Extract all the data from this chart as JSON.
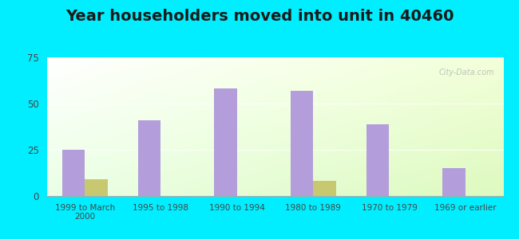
{
  "title": "Year householders moved into unit in 40460",
  "categories": [
    "1999 to March\n2000",
    "1995 to 1998",
    "1990 to 1994",
    "1980 to 1989",
    "1970 to 1979",
    "1969 or earlier"
  ],
  "white_non_hispanic": [
    25,
    41,
    58,
    57,
    39,
    15
  ],
  "two_or_more_races": [
    9,
    0,
    0,
    8,
    0,
    0
  ],
  "bar_color_white": "#b39ddb",
  "bar_color_two": "#c8c870",
  "ylim": [
    0,
    75
  ],
  "yticks": [
    0,
    25,
    50,
    75
  ],
  "background_outer": "#00eeff",
  "grid_color": "#ffffff",
  "bar_width": 0.3,
  "title_fontsize": 14,
  "watermark": "City-Data.com"
}
